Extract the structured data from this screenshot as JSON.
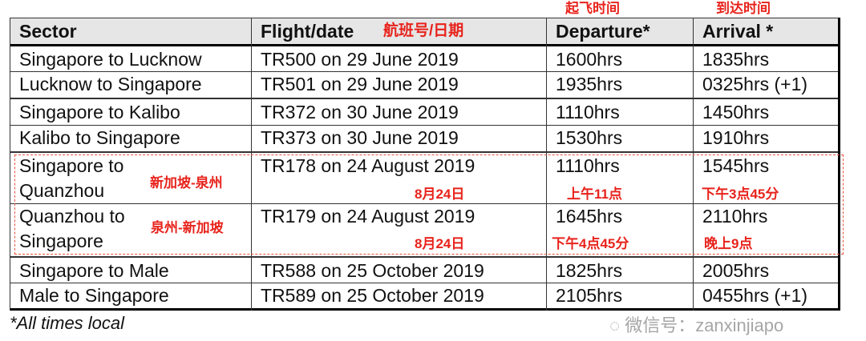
{
  "headers": {
    "sector": "Sector",
    "flight": "Flight/date",
    "departure": "Departure*",
    "arrival": "Arrival *"
  },
  "annotations": {
    "flight_cn": "航班号/日期",
    "departure_cn": "起飞时间",
    "arrival_cn": "到达时间"
  },
  "rows": [
    {
      "sector": "Singapore to Lucknow",
      "flight": "TR500 on 29 June 2019",
      "dep": "1600hrs",
      "arr": "1835hrs"
    },
    {
      "sector": "Lucknow to Singapore",
      "flight": "TR501 on 29 June 2019",
      "dep": "1935hrs",
      "arr": "0325hrs (+1)"
    },
    {
      "sector": "Singapore to Kalibo",
      "flight": "TR372 on 30 June 2019",
      "dep": "1110hrs",
      "arr": "1450hrs"
    },
    {
      "sector": "Kalibo to Singapore",
      "flight": "TR373 on 30 June 2019",
      "dep": "1530hrs",
      "arr": "1910hrs"
    },
    {
      "sector_l1": "Singapore to",
      "sector_l2": "Quanzhou",
      "sector_cn": "新加坡-泉州",
      "flight": "TR178 on 24 August 2019",
      "date_cn": "8月24日",
      "dep": "1110hrs",
      "dep_cn": "上午11点",
      "arr": "1545hrs",
      "arr_cn": "下午3点45分"
    },
    {
      "sector_l1": "Quanzhou to",
      "sector_l2": "Singapore",
      "sector_cn": "泉州-新加坡",
      "flight": "TR179 on 24 August 2019",
      "date_cn": "8月24日",
      "dep": "1645hrs",
      "dep_cn": "下午4点45分",
      "arr": "2110hrs",
      "arr_cn": "晚上9点"
    },
    {
      "sector": "Singapore to Male",
      "flight": "TR588 on 25 October 2019",
      "dep": "1825hrs",
      "arr": "2005hrs"
    },
    {
      "sector": "Male to Singapore",
      "flight": "TR589 on 25 October 2019",
      "dep": "2105hrs",
      "arr": "0455hrs (+1)"
    }
  ],
  "footnote": "*All times local",
  "watermark": "微信号：zanxinjiapo",
  "colors": {
    "annotation": "#e8231c",
    "header_bg": "#e6e6e6"
  }
}
